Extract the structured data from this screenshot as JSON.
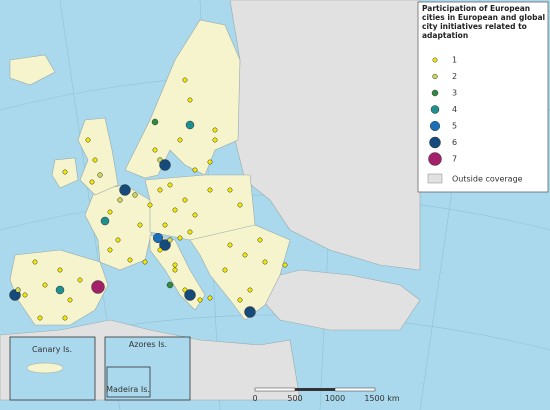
{
  "legend": {
    "title": "Participation of European cities in European and global city initiatives related to adaptation",
    "items": [
      {
        "label": "1",
        "color": "#f3e800"
      },
      {
        "label": "2",
        "color": "#c9d65a"
      },
      {
        "label": "3",
        "color": "#2e8b3e"
      },
      {
        "label": "4",
        "color": "#1f8f8f"
      },
      {
        "label": "5",
        "color": "#1a6fb8"
      },
      {
        "label": "6",
        "color": "#154a7a"
      },
      {
        "label": "7",
        "color": "#a3206a"
      }
    ],
    "outside": "Outside coverage"
  },
  "insets": {
    "canary": "Canary Is.",
    "azores": "Azores Is.",
    "madeira": "Madeira Is."
  },
  "scale": {
    "ticks": [
      "0",
      "500",
      "1000",
      "1500 km"
    ]
  }
}
